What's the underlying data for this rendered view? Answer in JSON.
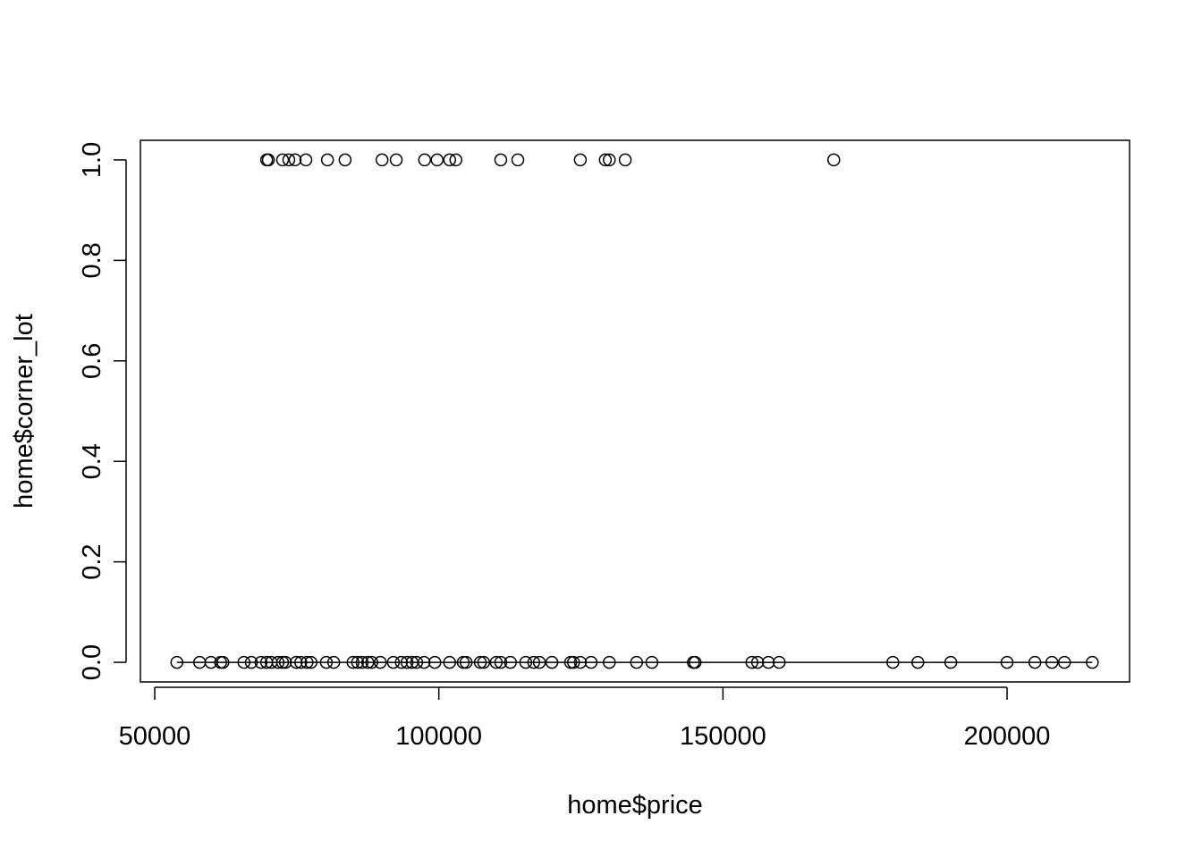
{
  "chart_data": {
    "type": "scatter",
    "x_label": "home$price",
    "y_label": "home$corner_lot",
    "x": [
      69700,
      70000,
      72500,
      73600,
      74700,
      76600,
      80400,
      83500,
      90000,
      92500,
      97500,
      99700,
      101900,
      103000,
      110900,
      113900,
      124900,
      129300,
      130000,
      132800,
      169500,
      53900,
      57900,
      59900,
      61600,
      62000,
      65700,
      67000,
      68700,
      69700,
      70500,
      71700,
      72500,
      73000,
      74900,
      75700,
      76800,
      77500,
      80200,
      81500,
      84900,
      85700,
      86500,
      87500,
      88200,
      89700,
      92000,
      93400,
      94400,
      95300,
      96100,
      97400,
      99300,
      101900,
      104300,
      104800,
      107300,
      107900,
      110100,
      110900,
      112600,
      115300,
      116700,
      117700,
      119900,
      123200,
      123700,
      124900,
      126800,
      130000,
      134800,
      137500,
      144800,
      145100,
      155100,
      156100,
      158000,
      159900,
      179900,
      184300,
      190100,
      200000,
      204900,
      207900,
      210100,
      215000
    ],
    "y": [
      1,
      1,
      1,
      1,
      1,
      1,
      1,
      1,
      1,
      1,
      1,
      1,
      1,
      1,
      1,
      1,
      1,
      1,
      1,
      1,
      1,
      0,
      0,
      0,
      0,
      0,
      0,
      0,
      0,
      0,
      0,
      0,
      0,
      0,
      0,
      0,
      0,
      0,
      0,
      0,
      0,
      0,
      0,
      0,
      0,
      0,
      0,
      0,
      0,
      0,
      0,
      0,
      0,
      0,
      0,
      0,
      0,
      0,
      0,
      0,
      0,
      0,
      0,
      0,
      0,
      0,
      0,
      0,
      0,
      0,
      0,
      0,
      0,
      0,
      0,
      0,
      0,
      0,
      0,
      0,
      0,
      0,
      0,
      0,
      0,
      0
    ],
    "line": {
      "x": [
        53900,
        215000
      ],
      "y": [
        0,
        0
      ]
    },
    "color": "#000000",
    "xlim": [
      47480,
      221560
    ],
    "ylim": [
      -0.039,
      1.039
    ],
    "xticks": [
      50000,
      100000,
      150000,
      200000
    ],
    "yticks": [
      {
        "value": 0,
        "label": "0.0"
      },
      {
        "value": 0.2,
        "label": "0.2"
      },
      {
        "value": 0.4,
        "label": "0.4"
      },
      {
        "value": 0.6,
        "label": "0.6"
      },
      {
        "value": 0.8,
        "label": "0.8"
      },
      {
        "value": 1,
        "label": "1.0"
      }
    ]
  }
}
